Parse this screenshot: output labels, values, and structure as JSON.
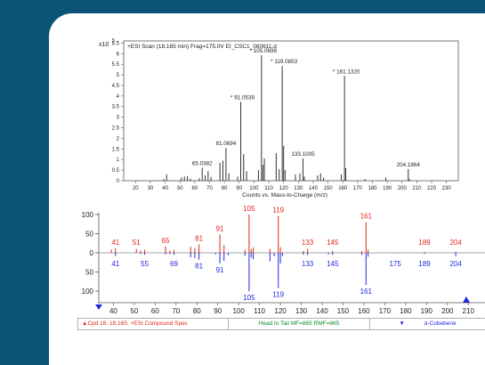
{
  "top_chart": {
    "header": "+ESI Scan (18.165 min) Frag=175.0V EI_CSC1_080611.d",
    "exponent_base": "x10",
    "exponent_power": "5",
    "xlabel": "Counts vs. Mass-to-Charge (m/z)"
  },
  "colors": {
    "frame": "#0b5477",
    "library": "#e0261a",
    "query": "#1e2adf",
    "green": "#0a8a2a",
    "peaks": "#333333"
  },
  "status": {
    "compound": "Cpd 16: 18.165: +ESI Compound Spec",
    "match": "Head to Tail MF=865 RMF=865",
    "library_hit": "α-Cubebene"
  },
  "chart_data": [
    {
      "type": "bar",
      "title": "+ESI Scan (18.165 min) Frag=175.0V EI_CSC1_080611.d",
      "xlabel": "Counts vs. Mass-to-Charge (m/z)",
      "ylabel": "",
      "y_unit": "x10^5",
      "xlim": [
        12,
        238
      ],
      "ylim": [
        0,
        6.6
      ],
      "xticks": [
        20,
        30,
        40,
        50,
        60,
        70,
        80,
        90,
        100,
        110,
        120,
        130,
        140,
        150,
        160,
        170,
        180,
        190,
        200,
        210,
        220,
        230
      ],
      "yticks": [
        0,
        0.5,
        1,
        1.5,
        2,
        2.5,
        3,
        3.5,
        4,
        4.5,
        5,
        5.5,
        6,
        6.5
      ],
      "ytick_labels": [
        "0",
        "0.5",
        "1",
        "1.5",
        "2",
        "2.5",
        "3",
        "3.5",
        "4",
        "4.5",
        "5",
        "5.5",
        "6",
        "6.5"
      ],
      "peaks": [
        {
          "x": 39,
          "y": 0.08
        },
        {
          "x": 41,
          "y": 0.3
        },
        {
          "x": 51,
          "y": 0.15
        },
        {
          "x": 53,
          "y": 0.2
        },
        {
          "x": 55,
          "y": 0.22
        },
        {
          "x": 57,
          "y": 0.1
        },
        {
          "x": 63,
          "y": 0.12
        },
        {
          "x": 65.0382,
          "y": 0.62
        },
        {
          "x": 67,
          "y": 0.25
        },
        {
          "x": 69,
          "y": 0.45
        },
        {
          "x": 71,
          "y": 0.18
        },
        {
          "x": 77,
          "y": 0.85
        },
        {
          "x": 79,
          "y": 0.95
        },
        {
          "x": 81.0694,
          "y": 1.55
        },
        {
          "x": 83,
          "y": 0.35
        },
        {
          "x": 89,
          "y": 0.2
        },
        {
          "x": 91.0539,
          "y": 3.72
        },
        {
          "x": 93,
          "y": 1.25
        },
        {
          "x": 95,
          "y": 0.45
        },
        {
          "x": 103,
          "y": 0.5
        },
        {
          "x": 105.0698,
          "y": 5.92
        },
        {
          "x": 106,
          "y": 0.75
        },
        {
          "x": 107,
          "y": 1.05
        },
        {
          "x": 115,
          "y": 1.3
        },
        {
          "x": 117,
          "y": 0.55
        },
        {
          "x": 119.0853,
          "y": 5.42
        },
        {
          "x": 120,
          "y": 1.65
        },
        {
          "x": 121,
          "y": 0.5
        },
        {
          "x": 128,
          "y": 0.3
        },
        {
          "x": 131,
          "y": 0.35
        },
        {
          "x": 133.1005,
          "y": 1.05
        },
        {
          "x": 134,
          "y": 0.2
        },
        {
          "x": 143,
          "y": 0.25
        },
        {
          "x": 145,
          "y": 0.35
        },
        {
          "x": 147,
          "y": 0.15
        },
        {
          "x": 159,
          "y": 0.3
        },
        {
          "x": 161.132,
          "y": 4.95
        },
        {
          "x": 162,
          "y": 0.6
        },
        {
          "x": 175,
          "y": 0.08
        },
        {
          "x": 189,
          "y": 0.15
        },
        {
          "x": 204.1864,
          "y": 0.55
        },
        {
          "x": 205,
          "y": 0.08
        }
      ],
      "annotations": [
        {
          "x": 65.0382,
          "y": 0.62,
          "text": "65.0382",
          "star": false
        },
        {
          "x": 81.0694,
          "y": 1.55,
          "text": "81.0694",
          "star": false
        },
        {
          "x": 91.0539,
          "y": 3.72,
          "text": "* 91.0539",
          "star": true
        },
        {
          "x": 105.0698,
          "y": 5.92,
          "text": "* 105.0698",
          "star": true
        },
        {
          "x": 119.0853,
          "y": 5.42,
          "text": "* 119.0853",
          "star": true
        },
        {
          "x": 133.1005,
          "y": 1.05,
          "text": "133.1005",
          "star": false
        },
        {
          "x": 161.132,
          "y": 4.95,
          "text": "* 161.1320",
          "star": true
        },
        {
          "x": 204.1864,
          "y": 0.55,
          "text": "204.1864",
          "star": false
        }
      ]
    },
    {
      "type": "bar",
      "title": "Head to Tail",
      "xlabel": "",
      "ylabel": "",
      "xlim": [
        33,
        218
      ],
      "ylim": [
        -100,
        100
      ],
      "xticks": [
        40,
        50,
        60,
        70,
        80,
        90,
        100,
        110,
        120,
        130,
        140,
        150,
        160,
        170,
        180,
        190,
        200,
        210
      ],
      "yticks": [
        100,
        50,
        0,
        50,
        100
      ],
      "ytick_values": [
        100,
        50,
        0,
        -50,
        -100
      ],
      "series": [
        {
          "name": "Library",
          "peaks": [
            {
              "x": 39,
              "y": 8
            },
            {
              "x": 41,
              "y": 12
            },
            {
              "x": 51,
              "y": 10
            },
            {
              "x": 53,
              "y": 6
            },
            {
              "x": 55,
              "y": 8
            },
            {
              "x": 65,
              "y": 16
            },
            {
              "x": 67,
              "y": 6
            },
            {
              "x": 69,
              "y": 8
            },
            {
              "x": 77,
              "y": 16
            },
            {
              "x": 79,
              "y": 12
            },
            {
              "x": 81,
              "y": 22
            },
            {
              "x": 91,
              "y": 48
            },
            {
              "x": 93,
              "y": 20
            },
            {
              "x": 103,
              "y": 8
            },
            {
              "x": 105,
              "y": 100
            },
            {
              "x": 106,
              "y": 10
            },
            {
              "x": 107,
              "y": 14
            },
            {
              "x": 115,
              "y": 10
            },
            {
              "x": 119,
              "y": 96
            },
            {
              "x": 120,
              "y": 15
            },
            {
              "x": 131,
              "y": 5
            },
            {
              "x": 133,
              "y": 10
            },
            {
              "x": 145,
              "y": 5
            },
            {
              "x": 159,
              "y": 5
            },
            {
              "x": 161,
              "y": 80
            },
            {
              "x": 162,
              "y": 9
            },
            {
              "x": 189,
              "y": 2
            },
            {
              "x": 204,
              "y": 3
            }
          ],
          "labels": [
            {
              "x": 41,
              "text": "41"
            },
            {
              "x": 51,
              "text": "51"
            },
            {
              "x": 65,
              "text": "65"
            },
            {
              "x": 81,
              "text": "81"
            },
            {
              "x": 91,
              "text": "91"
            },
            {
              "x": 105,
              "text": "105"
            },
            {
              "x": 119,
              "text": "119"
            },
            {
              "x": 133,
              "text": "133"
            },
            {
              "x": 145,
              "text": "145"
            },
            {
              "x": 161,
              "text": "161"
            },
            {
              "x": 189,
              "text": "189"
            },
            {
              "x": 204,
              "text": "204"
            }
          ]
        },
        {
          "name": "Query",
          "peaks": [
            {
              "x": 41,
              "y": -8
            },
            {
              "x": 53,
              "y": -3
            },
            {
              "x": 55,
              "y": -5
            },
            {
              "x": 65,
              "y": -4
            },
            {
              "x": 67,
              "y": -3
            },
            {
              "x": 69,
              "y": -5
            },
            {
              "x": 77,
              "y": -12
            },
            {
              "x": 79,
              "y": -14
            },
            {
              "x": 81,
              "y": -18
            },
            {
              "x": 89,
              "y": -4
            },
            {
              "x": 91,
              "y": -28
            },
            {
              "x": 93,
              "y": -21
            },
            {
              "x": 95,
              "y": -6
            },
            {
              "x": 103,
              "y": -8
            },
            {
              "x": 105,
              "y": -100
            },
            {
              "x": 106,
              "y": -12
            },
            {
              "x": 107,
              "y": -17
            },
            {
              "x": 115,
              "y": -22
            },
            {
              "x": 117,
              "y": -9
            },
            {
              "x": 119,
              "y": -92
            },
            {
              "x": 120,
              "y": -28
            },
            {
              "x": 121,
              "y": -8
            },
            {
              "x": 131,
              "y": -5
            },
            {
              "x": 133,
              "y": -6
            },
            {
              "x": 143,
              "y": -4
            },
            {
              "x": 145,
              "y": -5
            },
            {
              "x": 159,
              "y": -5
            },
            {
              "x": 161,
              "y": -84
            },
            {
              "x": 162,
              "y": -10
            },
            {
              "x": 175,
              "y": -1
            },
            {
              "x": 189,
              "y": -2
            },
            {
              "x": 204,
              "y": -9
            }
          ],
          "labels": [
            {
              "x": 41,
              "text": "41"
            },
            {
              "x": 55,
              "text": "55"
            },
            {
              "x": 69,
              "text": "69"
            },
            {
              "x": 81,
              "text": "81"
            },
            {
              "x": 91,
              "text": "91"
            },
            {
              "x": 105,
              "text": "105"
            },
            {
              "x": 119,
              "text": "119"
            },
            {
              "x": 133,
              "text": "133"
            },
            {
              "x": 145,
              "text": "145"
            },
            {
              "x": 161,
              "text": "161"
            },
            {
              "x": 175,
              "text": "175"
            },
            {
              "x": 189,
              "text": "189"
            },
            {
              "x": 204,
              "text": "204"
            }
          ]
        }
      ]
    }
  ]
}
